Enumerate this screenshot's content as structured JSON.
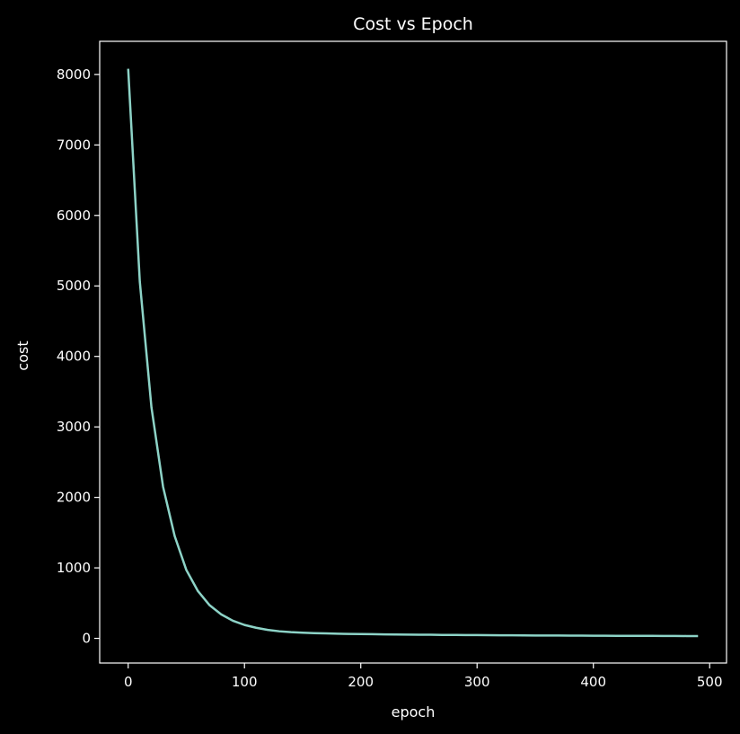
{
  "chart_data": {
    "type": "line",
    "title": "Cost vs Epoch",
    "xlabel": "epoch",
    "ylabel": "cost",
    "xlim": [
      -24.5,
      514.5
    ],
    "ylim": [
      -350,
      8470
    ],
    "xticks": [
      0,
      100,
      200,
      300,
      400,
      500
    ],
    "yticks": [
      0,
      1000,
      2000,
      3000,
      4000,
      5000,
      6000,
      7000,
      8000
    ],
    "grid": false,
    "series": [
      {
        "color": "#8dd3c7",
        "x": [
          0,
          10,
          20,
          30,
          40,
          50,
          60,
          70,
          80,
          90,
          100,
          110,
          120,
          130,
          140,
          150,
          160,
          170,
          180,
          190,
          200,
          210,
          220,
          230,
          240,
          250,
          260,
          270,
          280,
          290,
          300,
          310,
          320,
          330,
          340,
          350,
          360,
          370,
          380,
          390,
          400,
          410,
          420,
          430,
          440,
          450,
          460,
          470,
          480,
          490
        ],
        "y": [
          8080,
          5060,
          3280,
          2150,
          1450,
          970,
          670,
          470,
          340,
          250,
          190,
          150,
          120,
          100,
          88,
          80,
          74,
          70,
          66,
          63,
          61,
          59,
          57,
          55,
          53,
          52,
          51,
          49,
          48,
          47,
          46,
          45,
          44,
          43,
          42,
          41,
          40,
          40,
          39,
          38,
          37,
          37,
          36,
          36,
          35,
          35,
          34,
          34,
          33,
          33
        ]
      }
    ]
  },
  "colors": {
    "background": "#000000",
    "axes": "#ffffff",
    "text": "#ffffff",
    "line": "#8dd3c7"
  }
}
